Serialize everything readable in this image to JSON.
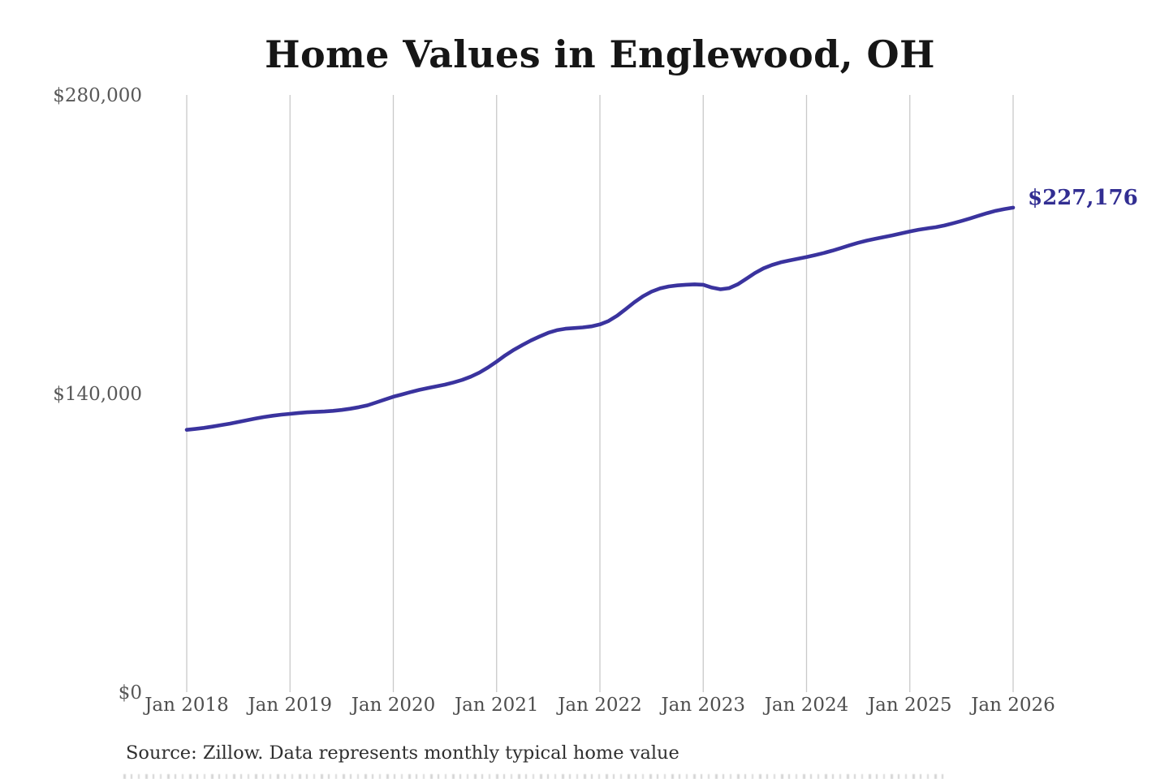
{
  "chart_data": {
    "type": "line",
    "title": "Home Values in Englewood, OH",
    "source": "Source: Zillow. Data represents monthly typical home value",
    "xlabel": "",
    "ylabel": "",
    "ylim": [
      0,
      280000
    ],
    "grid": "vertical-only",
    "legend": "none",
    "line_color": "#3a339e",
    "grid_color": "#c9c9c9",
    "annotation": {
      "text": "$227,176",
      "value": 227176,
      "x": "2026-01",
      "color": "#322e92"
    },
    "y_ticks": [
      {
        "label": "$0",
        "value": 0
      },
      {
        "label": "$140,000",
        "value": 140000
      },
      {
        "label": "$280,000",
        "value": 280000
      }
    ],
    "x_tick_labels": [
      "Jan 2018",
      "Jan 2019",
      "Jan 2020",
      "Jan 2021",
      "Jan 2022",
      "Jan 2023",
      "Jan 2024",
      "Jan 2025",
      "Jan 2026"
    ],
    "x": [
      "2018-01",
      "2018-02",
      "2018-03",
      "2018-04",
      "2018-05",
      "2018-06",
      "2018-07",
      "2018-08",
      "2018-09",
      "2018-10",
      "2018-11",
      "2018-12",
      "2019-01",
      "2019-02",
      "2019-03",
      "2019-04",
      "2019-05",
      "2019-06",
      "2019-07",
      "2019-08",
      "2019-09",
      "2019-10",
      "2019-11",
      "2019-12",
      "2020-01",
      "2020-02",
      "2020-03",
      "2020-04",
      "2020-05",
      "2020-06",
      "2020-07",
      "2020-08",
      "2020-09",
      "2020-10",
      "2020-11",
      "2020-12",
      "2021-01",
      "2021-02",
      "2021-03",
      "2021-04",
      "2021-05",
      "2021-06",
      "2021-07",
      "2021-08",
      "2021-09",
      "2021-10",
      "2021-11",
      "2021-12",
      "2022-01",
      "2022-02",
      "2022-03",
      "2022-04",
      "2022-05",
      "2022-06",
      "2022-07",
      "2022-08",
      "2022-09",
      "2022-10",
      "2022-11",
      "2022-12",
      "2023-01",
      "2023-02",
      "2023-03",
      "2023-04",
      "2023-05",
      "2023-06",
      "2023-07",
      "2023-08",
      "2023-09",
      "2023-10",
      "2023-11",
      "2023-12",
      "2024-01",
      "2024-02",
      "2024-03",
      "2024-04",
      "2024-05",
      "2024-06",
      "2024-07",
      "2024-08",
      "2024-09",
      "2024-10",
      "2024-11",
      "2024-12",
      "2025-01",
      "2025-02",
      "2025-03",
      "2025-04",
      "2025-05",
      "2025-06",
      "2025-07",
      "2025-08",
      "2025-09",
      "2025-10",
      "2025-11",
      "2025-12",
      "2026-01"
    ],
    "values": [
      123000,
      123400,
      123900,
      124500,
      125200,
      125900,
      126700,
      127500,
      128300,
      129000,
      129600,
      130100,
      130500,
      130900,
      131200,
      131400,
      131600,
      131900,
      132300,
      132900,
      133600,
      134500,
      135800,
      137200,
      138500,
      139600,
      140700,
      141700,
      142600,
      143400,
      144200,
      145200,
      146400,
      147900,
      149800,
      152200,
      155000,
      157900,
      160500,
      162800,
      164900,
      166800,
      168500,
      169700,
      170400,
      170700,
      171000,
      171500,
      172400,
      174000,
      176500,
      179600,
      182800,
      185600,
      187800,
      189300,
      190200,
      190700,
      191000,
      191200,
      191000,
      189700,
      188900,
      189400,
      191200,
      193800,
      196500,
      198700,
      200300,
      201500,
      202400,
      203200,
      204000,
      204900,
      205900,
      207000,
      208200,
      209500,
      210700,
      211700,
      212600,
      213400,
      214200,
      215100,
      216000,
      216800,
      217400,
      218000,
      218800,
      219800,
      220900,
      222100,
      223400,
      224600,
      225700,
      226500,
      227176
    ]
  }
}
